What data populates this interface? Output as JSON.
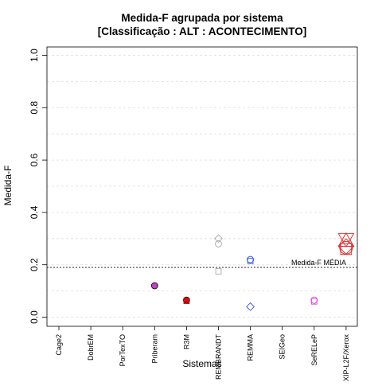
{
  "chart_data": {
    "type": "scatter",
    "title_line1": "Medida-F agrupada por sistema",
    "title_line2": "[Classificação : ALT : ACONTECIMENTO]",
    "xlabel": "Sistemas",
    "ylabel": "Medida-F",
    "ylim": [
      0.0,
      1.0
    ],
    "yticks": [
      "0.0",
      "0.2",
      "0.4",
      "0.6",
      "0.8",
      "1.0"
    ],
    "ytick_values": [
      0.0,
      0.2,
      0.4,
      0.6,
      0.8,
      1.0
    ],
    "grid": true,
    "categories": [
      "Cage2",
      "DobrEM",
      "PorTexTO",
      "Priberam",
      "R3M",
      "REMBRANDT",
      "REMMA",
      "SEIGeo",
      "SeRELeP",
      "XIP-L2F/Xerox"
    ],
    "reference_line": {
      "value": 0.19,
      "label": "Medida-F MÉDIA",
      "color": "#555555"
    },
    "points": [
      {
        "category": "Priberam",
        "value": 0.12,
        "shape": "circle-filled",
        "color": "#c040c0"
      },
      {
        "category": "R3M",
        "value": 0.065,
        "shape": "circle-filled",
        "color": "#cc1111"
      },
      {
        "category": "R3M",
        "value": 0.062,
        "shape": "square",
        "color": "#cc1111"
      },
      {
        "category": "REMBRANDT",
        "value": 0.3,
        "shape": "diamond",
        "color": "#aaaaaa"
      },
      {
        "category": "REMBRANDT",
        "value": 0.28,
        "shape": "circle",
        "color": "#aaaaaa"
      },
      {
        "category": "REMBRANDT",
        "value": 0.175,
        "shape": "square",
        "color": "#aaaaaa"
      },
      {
        "category": "REMMA",
        "value": 0.22,
        "shape": "circle",
        "color": "#3355dd"
      },
      {
        "category": "REMMA",
        "value": 0.215,
        "shape": "square",
        "color": "#3355dd"
      },
      {
        "category": "REMMA",
        "value": 0.04,
        "shape": "diamond",
        "color": "#3355dd"
      },
      {
        "category": "SeRELeP",
        "value": 0.065,
        "shape": "circle",
        "color": "#dd44dd"
      },
      {
        "category": "SeRELeP",
        "value": 0.06,
        "shape": "square",
        "color": "#dd44dd"
      },
      {
        "category": "XIP-L2F/Xerox",
        "value": 0.3,
        "shape": "triangle-down",
        "color": "#dd3333"
      },
      {
        "category": "XIP-L2F/Xerox",
        "value": 0.29,
        "shape": "triangle-up",
        "color": "#dd3333"
      },
      {
        "category": "XIP-L2F/Xerox",
        "value": 0.27,
        "shape": "diamond",
        "color": "#dd3333"
      },
      {
        "category": "XIP-L2F/Xerox",
        "value": 0.265,
        "shape": "circle",
        "color": "#dd3333"
      },
      {
        "category": "XIP-L2F/Xerox",
        "value": 0.26,
        "shape": "square",
        "color": "#dd3333"
      }
    ]
  }
}
